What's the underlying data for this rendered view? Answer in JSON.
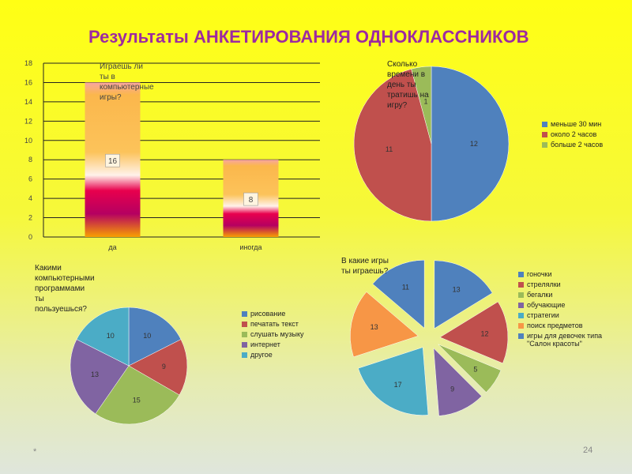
{
  "slide": {
    "title": "Результаты АНКЕТИРОВАНИЯ ОДНОКЛАССНИКОВ",
    "footer_left": "*",
    "page_number": "24"
  },
  "colors": {
    "blue": "#4f81bd",
    "red": "#c0504d",
    "green": "#9bbb59",
    "purple": "#8064a2",
    "teal": "#4bacc6",
    "orange": "#f79646",
    "title": "#9d2aa0"
  },
  "chart_data": [
    {
      "type": "bar",
      "title": "Играешь ли ты в компьютерные игры?",
      "categories": [
        "да",
        "иногда"
      ],
      "values": [
        16,
        8
      ],
      "data_labels": [
        "16",
        "8"
      ],
      "ylim": [
        0,
        18
      ],
      "yticks": [
        "0",
        "2",
        "4",
        "6",
        "8",
        "10",
        "12",
        "14",
        "16",
        "18"
      ],
      "grid": true
    },
    {
      "type": "pie",
      "title": "Сколько времени в день ты тратишь на игру?",
      "series": [
        {
          "name": "меньше 30 мин",
          "value": 12,
          "color": "#4f81bd"
        },
        {
          "name": "около 2 часов",
          "value": 11,
          "color": "#c0504d"
        },
        {
          "name": "больше 2 часов",
          "value": 1,
          "color": "#9bbb59"
        }
      ],
      "legend": "right"
    },
    {
      "type": "pie",
      "title": "Какими компьютерными программами ты пользуешься?",
      "series": [
        {
          "name": "рисование",
          "value": 10,
          "color": "#4f81bd"
        },
        {
          "name": "печатать текст",
          "value": 9,
          "color": "#c0504d"
        },
        {
          "name": "слушать музыку",
          "value": 15,
          "color": "#9bbb59"
        },
        {
          "name": "интернет",
          "value": 13,
          "color": "#8064a2"
        },
        {
          "name": "другое",
          "value": 10,
          "color": "#4bacc6"
        }
      ],
      "legend": "right"
    },
    {
      "type": "pie",
      "title": "В какие игры ты играешь?",
      "exploded": true,
      "series": [
        {
          "name": "гоночки",
          "value": 13,
          "color": "#4f81bd"
        },
        {
          "name": "стрелялки",
          "value": 12,
          "color": "#c0504d"
        },
        {
          "name": "бегалки",
          "value": 5,
          "color": "#9bbb59"
        },
        {
          "name": "обучающие",
          "value": 9,
          "color": "#8064a2"
        },
        {
          "name": "стратегии",
          "value": 17,
          "color": "#4bacc6"
        },
        {
          "name": "поиск предметов",
          "value": 13,
          "color": "#f79646"
        },
        {
          "name": "игры для девочек типа \"Салон красоты\"",
          "value": 11,
          "color": "#4f81bd"
        }
      ],
      "legend": "right"
    }
  ]
}
